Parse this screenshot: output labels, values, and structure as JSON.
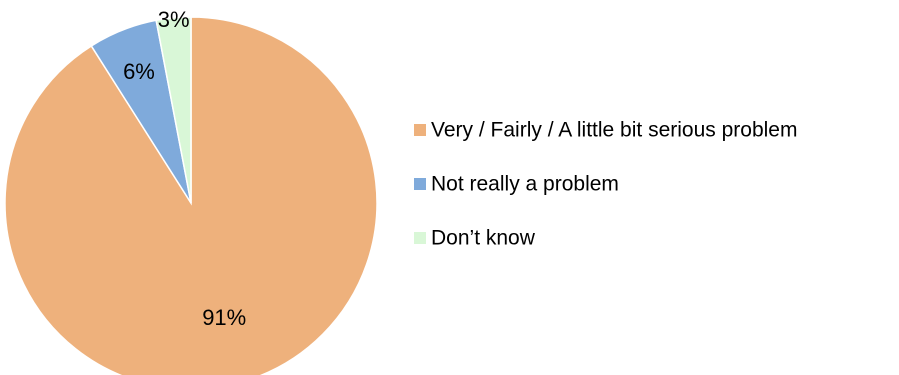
{
  "chart_data": {
    "type": "pie",
    "categories": [
      "Very / Fairly / A little bit serious problem",
      "Not really a problem",
      "Don’t know"
    ],
    "values": [
      91,
      6,
      3
    ],
    "data_labels": [
      "91%",
      "6%",
      "3%"
    ],
    "colors": [
      "#EEB17C",
      "#7FAADB",
      "#D9F7D7"
    ],
    "stroke_color": "#FFFFFF",
    "start_angle": "12 o'clock",
    "direction": "clockwise",
    "legend": {
      "position": "right",
      "entries": [
        "Very / Fairly / A little bit serious problem",
        "Not really a problem",
        "Don’t know"
      ]
    },
    "title": ""
  }
}
